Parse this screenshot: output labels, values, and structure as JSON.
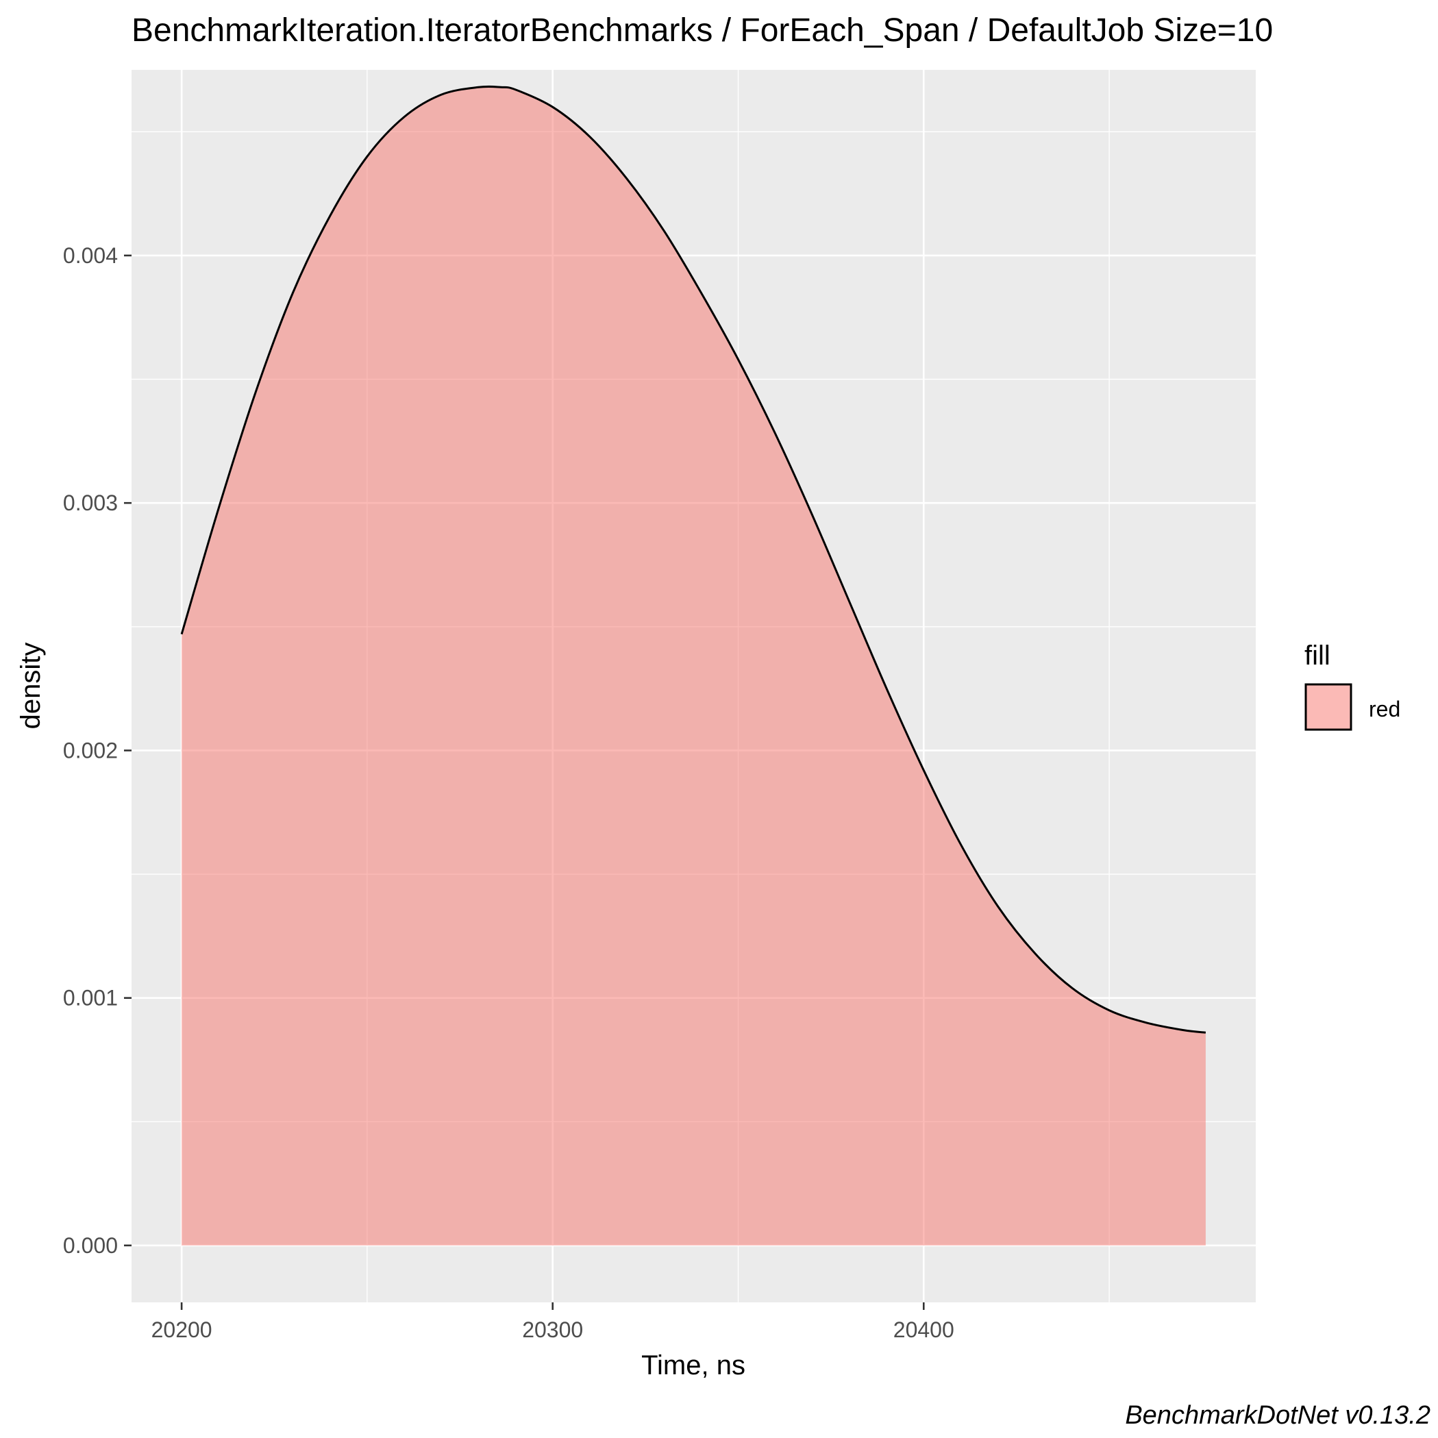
{
  "chart_data": {
    "type": "area",
    "title": "BenchmarkIteration.IteratorBenchmarks / ForEach_Span / DefaultJob Size=10",
    "xlabel": "Time, ns",
    "ylabel": "density",
    "caption": "BenchmarkDotNet v0.13.2",
    "xlim": [
      20186.5,
      20489.5
    ],
    "ylim": [
      -0.00023,
      0.00475
    ],
    "x_ticks": [
      20200,
      20300,
      20400
    ],
    "x_tick_labels": [
      "20200",
      "20300",
      "20400"
    ],
    "x_minor_ticks": [
      20250,
      20350,
      20450
    ],
    "y_ticks": [
      0.0,
      0.001,
      0.002,
      0.003,
      0.004
    ],
    "y_tick_labels": [
      "0.000",
      "0.001",
      "0.002",
      "0.003",
      "0.004"
    ],
    "y_minor_ticks": [
      0.0005,
      0.0015,
      0.0025,
      0.0035,
      0.0045
    ],
    "grid": true,
    "legend": {
      "title": "fill",
      "position": "right",
      "entries": [
        "red"
      ]
    },
    "colors": {
      "fill": "#f8766d",
      "fill_opacity": 0.5,
      "line": "#000000",
      "panel_background": "#ebebeb",
      "grid": "#ffffff"
    },
    "series": [
      {
        "x": [
          20200,
          20210,
          20220,
          20230,
          20240,
          20250,
          20260,
          20270,
          20280,
          20286,
          20290,
          20300,
          20310,
          20320,
          20330,
          20340,
          20350,
          20360,
          20370,
          20380,
          20390,
          20400,
          20410,
          20420,
          20430,
          20440,
          20450,
          20460,
          20470,
          20476
        ],
        "y": [
          0.00247,
          0.00298,
          0.00345,
          0.00385,
          0.00416,
          0.0044,
          0.00456,
          0.00465,
          0.00468,
          0.00468,
          0.00467,
          0.0046,
          0.00448,
          0.00431,
          0.0041,
          0.00385,
          0.00358,
          0.00328,
          0.00295,
          0.0026,
          0.00225,
          0.00192,
          0.00162,
          0.00137,
          0.00118,
          0.00104,
          0.00095,
          0.0009,
          0.00087,
          0.00086
        ]
      }
    ]
  }
}
